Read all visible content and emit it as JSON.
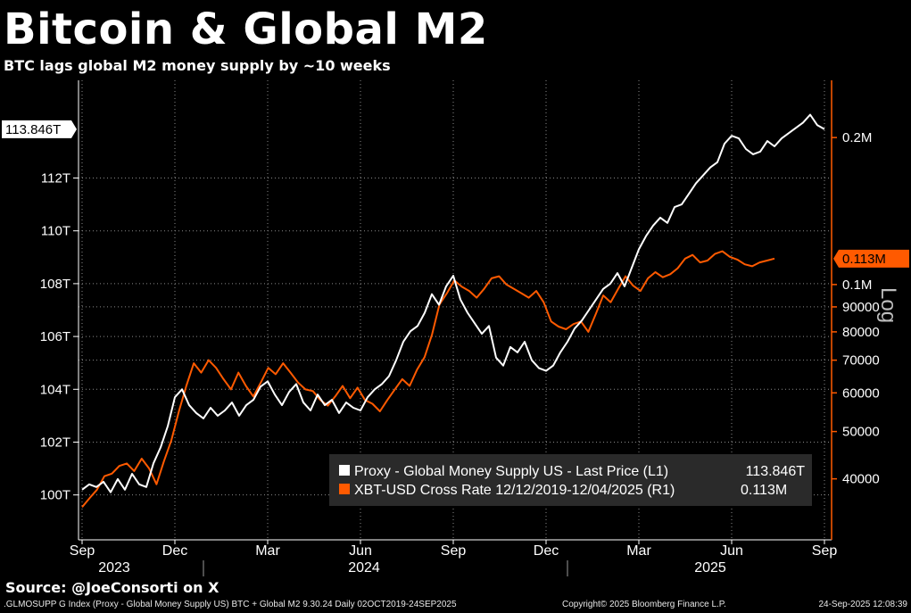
{
  "title": "Bitcoin & Global M2",
  "subtitle": "BTC lags global M2 money supply by ~10 weeks",
  "source": "Source: @JoeConsorti on X",
  "footer": {
    "left": ".GLMOSUPP G Index (Proxy - Global Money Supply US) BTC + Global M2 9.30.24  Daily 02OCT2019-24SEP2025",
    "center": "Copyright© 2025 Bloomberg Finance L.P.",
    "right": "24-Sep-2025 12:08:39"
  },
  "colors": {
    "background": "#000000",
    "m2": "#ffffff",
    "btc": "#ff5a00",
    "grid": "#8a8a8a"
  },
  "chart_data": {
    "type": "line",
    "title": "Bitcoin & Global M2",
    "x_ticks": [
      "Sep",
      "Dec",
      "Mar",
      "Jun",
      "Sep",
      "Dec",
      "Mar",
      "Jun",
      "Sep"
    ],
    "x_tick_index": [
      0,
      13,
      26,
      39,
      52,
      65,
      78,
      91,
      104
    ],
    "years": [
      {
        "label": "2023",
        "index": 4.5
      },
      {
        "label": "2024",
        "index": 39.5
      },
      {
        "label": "2025",
        "index": 88
      }
    ],
    "left_axis": {
      "unit": "T",
      "ticks": [
        "100T",
        "102T",
        "104T",
        "106T",
        "108T",
        "110T",
        "112T"
      ],
      "tick_values": [
        100,
        102,
        104,
        106,
        108,
        110,
        112
      ],
      "range": [
        98.3,
        115.7
      ],
      "last_label": "113.846T",
      "last_value": 113.846
    },
    "right_axis": {
      "scale": "log",
      "label": "Log",
      "ticks": [
        "40000",
        "50000",
        "60000",
        "70000",
        "80000",
        "90000",
        "0.1M",
        "0.2M"
      ],
      "tick_values": [
        40000,
        50000,
        60000,
        70000,
        80000,
        90000,
        100000,
        200000
      ],
      "range": [
        30000,
        262000
      ],
      "last_label": "0.113M",
      "last_value": 113000
    },
    "series": [
      {
        "name": "Proxy - Global Money Supply US - Last Price (L1)",
        "legend_value": "113.846T",
        "axis": "left",
        "values": [
          100.2,
          100.4,
          100.3,
          100.5,
          100.1,
          100.6,
          100.2,
          100.8,
          100.4,
          100.3,
          101.2,
          101.8,
          102.6,
          103.7,
          104.0,
          103.4,
          103.1,
          102.9,
          103.3,
          103.0,
          103.2,
          103.5,
          103.0,
          103.4,
          103.6,
          104.1,
          104.3,
          103.8,
          103.4,
          103.9,
          104.2,
          103.5,
          103.2,
          103.8,
          103.4,
          103.6,
          103.1,
          103.5,
          103.3,
          103.2,
          103.7,
          104.0,
          104.2,
          104.5,
          105.1,
          105.8,
          106.2,
          106.4,
          106.9,
          107.6,
          107.2,
          107.9,
          108.3,
          107.4,
          106.9,
          106.5,
          106.1,
          106.4,
          105.2,
          104.9,
          105.6,
          105.4,
          105.8,
          105.1,
          104.8,
          104.7,
          104.9,
          105.4,
          105.8,
          106.3,
          106.6,
          107.0,
          107.4,
          107.8,
          108.0,
          108.4,
          107.9,
          108.6,
          109.3,
          109.8,
          110.2,
          110.5,
          110.3,
          110.9,
          111.0,
          111.4,
          111.8,
          112.1,
          112.4,
          112.6,
          113.3,
          113.6,
          113.5,
          113.1,
          112.9,
          113.0,
          113.4,
          113.2,
          113.5,
          113.7,
          113.9,
          114.1,
          114.4,
          114.0,
          113.85
        ],
        "color": "#ffffff"
      },
      {
        "name": "XBT-USD Cross Rate 12/12/2019-12/04/2025 (R1)",
        "legend_value": "0.113M",
        "axis": "right",
        "values": [
          35000,
          36500,
          38000,
          40500,
          41000,
          42500,
          43000,
          41500,
          44000,
          42000,
          39000,
          43500,
          48000,
          55000,
          62000,
          69000,
          66000,
          70000,
          67500,
          64000,
          61000,
          66000,
          62000,
          59000,
          63000,
          67500,
          65500,
          69000,
          66000,
          63000,
          61000,
          60500,
          58000,
          56500,
          59000,
          62000,
          58500,
          61500,
          58000,
          57000,
          55000,
          58000,
          61000,
          64000,
          62000,
          67000,
          71000,
          79000,
          91000,
          96000,
          102000,
          99000,
          97000,
          94000,
          98000,
          103000,
          104000,
          100000,
          98000,
          96000,
          94000,
          97000,
          92000,
          84000,
          82000,
          81000,
          83000,
          84000,
          80000,
          87000,
          95000,
          92000,
          98000,
          104000,
          99500,
          97000,
          103000,
          106000,
          103500,
          105000,
          108000,
          113000,
          115000,
          111000,
          112000,
          115500,
          117000,
          114000,
          112500,
          110000,
          109000,
          111000,
          112000,
          113000
        ],
        "color": "#ff5a00"
      }
    ]
  }
}
